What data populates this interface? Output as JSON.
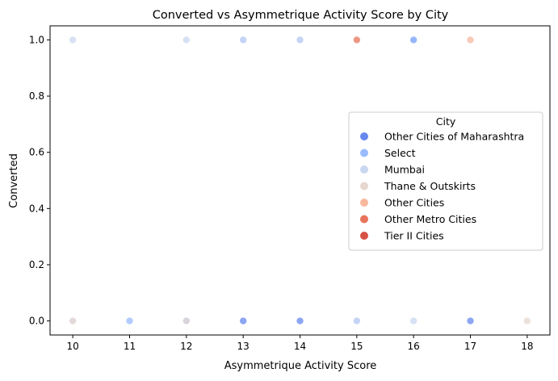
{
  "chart_data": {
    "type": "scatter",
    "title": "Converted vs Asymmetrique Activity Score by City",
    "xlabel": "Asymmetrique Activity Score",
    "ylabel": "Converted",
    "xlim": [
      9.6,
      18.4
    ],
    "ylim": [
      -0.05,
      1.05
    ],
    "xticks": [
      10,
      11,
      12,
      13,
      14,
      15,
      16,
      17,
      18
    ],
    "yticks": [
      0.0,
      0.2,
      0.4,
      0.6,
      0.8,
      1.0
    ],
    "ytick_labels": [
      "0.0",
      "0.2",
      "0.4",
      "0.6",
      "0.8",
      "1.0"
    ],
    "grid": false,
    "legend": {
      "title": "City",
      "placement": "center-right"
    },
    "series": [
      {
        "name": "Other Cities of Maharashtra",
        "color": "#6788ee",
        "points": [
          [
            13,
            0
          ],
          [
            14,
            0
          ],
          [
            16,
            1
          ],
          [
            17,
            0
          ]
        ]
      },
      {
        "name": "Select",
        "color": "#9abbff",
        "points": [
          [
            11,
            0
          ],
          [
            13,
            1
          ],
          [
            14,
            1
          ],
          [
            15,
            0
          ],
          [
            16,
            1
          ],
          [
            12,
            0
          ]
        ]
      },
      {
        "name": "Mumbai",
        "color": "#c9d7f0",
        "points": [
          [
            10,
            1
          ],
          [
            12,
            1
          ],
          [
            13,
            1
          ],
          [
            14,
            1
          ],
          [
            16,
            0
          ],
          [
            10,
            0
          ],
          [
            15,
            0
          ]
        ]
      },
      {
        "name": "Thane & Outskirts",
        "color": "#e6d7cf",
        "points": [
          [
            10,
            0
          ],
          [
            12,
            0
          ],
          [
            18,
            0
          ]
        ]
      },
      {
        "name": "Other Cities",
        "color": "#f7b89c",
        "points": [
          [
            17,
            1
          ]
        ]
      },
      {
        "name": "Other Metro Cities",
        "color": "#e7745b",
        "points": [
          [
            15,
            1
          ]
        ]
      },
      {
        "name": "Tier II Cities",
        "color": "#d65244",
        "points": []
      }
    ]
  }
}
